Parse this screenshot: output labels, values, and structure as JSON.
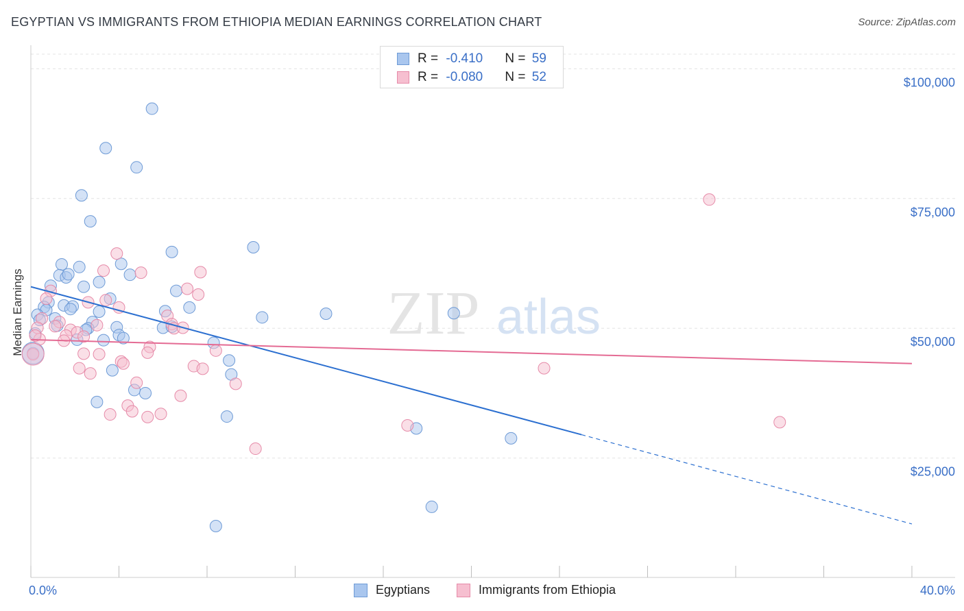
{
  "title": "EGYPTIAN VS IMMIGRANTS FROM ETHIOPIA MEDIAN EARNINGS CORRELATION CHART",
  "source": "Source: ZipAtlas.com",
  "watermark": {
    "zip": "ZIP",
    "atlas": "atlas"
  },
  "legend": {
    "rows": [
      {
        "r_label": "R = ",
        "r_value": "-0.410",
        "n_label": "N = ",
        "n_value": "59",
        "color": "#a9c6ee",
        "border": "#6d9ad6"
      },
      {
        "r_label": "R = ",
        "r_value": "-0.080",
        "n_label": "N = ",
        "n_value": "52",
        "color": "#f6bfd0",
        "border": "#e68aa8"
      }
    ]
  },
  "bottom_legend": [
    {
      "label": "Egyptians",
      "color": "#a9c6ee",
      "border": "#6d9ad6"
    },
    {
      "label": "Immigrants from Ethiopia",
      "color": "#f6bfd0",
      "border": "#e68aa8"
    }
  ],
  "x_axis": {
    "min_label": "0.0%",
    "max_label": "40.0%"
  },
  "chart_data": {
    "type": "scatter",
    "ylabel": "Median Earnings",
    "xlim": [
      0,
      40
    ],
    "ylim": [
      2000,
      104000
    ],
    "y_ticks": [
      {
        "value": 25000,
        "label": "$25,000"
      },
      {
        "value": 50000,
        "label": "$50,000"
      },
      {
        "value": 75000,
        "label": "$75,000"
      },
      {
        "value": 100000,
        "label": "$100,000"
      }
    ],
    "x_tick_values": [
      0,
      4,
      8,
      12,
      16,
      20,
      24,
      28,
      32,
      36,
      40
    ],
    "grid": "horizontal dashed",
    "series": [
      {
        "name": "Egyptians",
        "color": "#6d9ad6",
        "fill": "#a9c6ee",
        "trend": {
          "x0": 0,
          "y0": 58000,
          "x1": 25,
          "y1": 29500,
          "dash_to_x": 40,
          "dash_to_y": 12300,
          "color": "#2b6fd0"
        },
        "points": [
          [
            5.5,
            92300
          ],
          [
            3.4,
            84700
          ],
          [
            4.8,
            81000
          ],
          [
            2.3,
            75600
          ],
          [
            2.7,
            70600
          ],
          [
            6.4,
            64700
          ],
          [
            10.1,
            65600
          ],
          [
            1.4,
            62300
          ],
          [
            2.2,
            61800
          ],
          [
            4.1,
            62400
          ],
          [
            1.3,
            60200
          ],
          [
            1.6,
            59800
          ],
          [
            1.7,
            60400
          ],
          [
            4.5,
            60300
          ],
          [
            3.1,
            58900
          ],
          [
            0.9,
            58200
          ],
          [
            2.4,
            58000
          ],
          [
            6.6,
            57200
          ],
          [
            3.6,
            55700
          ],
          [
            0.8,
            55000
          ],
          [
            1.5,
            54400
          ],
          [
            0.6,
            54100
          ],
          [
            1.9,
            54200
          ],
          [
            7.2,
            54000
          ],
          [
            1.8,
            53700
          ],
          [
            0.7,
            53500
          ],
          [
            3.1,
            53200
          ],
          [
            6.1,
            53300
          ],
          [
            10.5,
            52100
          ],
          [
            13.4,
            52800
          ],
          [
            19.2,
            52900
          ],
          [
            0.3,
            52600
          ],
          [
            1.1,
            51900
          ],
          [
            0.4,
            51600
          ],
          [
            2.8,
            51200
          ],
          [
            1.2,
            50500
          ],
          [
            2.6,
            50000
          ],
          [
            2.5,
            49700
          ],
          [
            3.9,
            50200
          ],
          [
            6.0,
            50100
          ],
          [
            6.4,
            50300
          ],
          [
            0.2,
            49000
          ],
          [
            4.0,
            48700
          ],
          [
            4.2,
            48100
          ],
          [
            3.3,
            47700
          ],
          [
            2.1,
            47800
          ],
          [
            8.3,
            47200
          ],
          [
            9.0,
            43800
          ],
          [
            3.7,
            41900
          ],
          [
            9.1,
            41100
          ],
          [
            4.7,
            38100
          ],
          [
            5.2,
            37500
          ],
          [
            3.0,
            35800
          ],
          [
            8.9,
            33000
          ],
          [
            17.5,
            30700
          ],
          [
            21.8,
            28800
          ],
          [
            18.2,
            15600
          ],
          [
            8.4,
            11900
          ],
          [
            0.1,
            45200
          ]
        ]
      },
      {
        "name": "Immigrants from Ethiopia",
        "color": "#e68aa8",
        "fill": "#f6bfd0",
        "trend": {
          "x0": 0,
          "y0": 47800,
          "x1": 40,
          "y1": 43200,
          "color": "#e46a93"
        },
        "points": [
          [
            30.8,
            74800
          ],
          [
            3.9,
            64400
          ],
          [
            3.3,
            61100
          ],
          [
            5.0,
            60700
          ],
          [
            7.7,
            60800
          ],
          [
            0.9,
            57200
          ],
          [
            7.1,
            57600
          ],
          [
            7.6,
            56500
          ],
          [
            0.7,
            55700
          ],
          [
            3.4,
            55400
          ],
          [
            2.6,
            55000
          ],
          [
            4.0,
            54000
          ],
          [
            6.2,
            52400
          ],
          [
            0.5,
            51900
          ],
          [
            1.3,
            51200
          ],
          [
            1.1,
            50400
          ],
          [
            6.4,
            50800
          ],
          [
            3.0,
            50600
          ],
          [
            6.5,
            50000
          ],
          [
            6.9,
            50100
          ],
          [
            0.3,
            50100
          ],
          [
            1.8,
            49700
          ],
          [
            2.1,
            49200
          ],
          [
            1.6,
            48600
          ],
          [
            2.4,
            48400
          ],
          [
            0.4,
            47900
          ],
          [
            1.5,
            47600
          ],
          [
            5.4,
            46400
          ],
          [
            8.4,
            45700
          ],
          [
            5.3,
            45300
          ],
          [
            2.4,
            45100
          ],
          [
            3.1,
            45000
          ],
          [
            4.1,
            43600
          ],
          [
            4.2,
            43200
          ],
          [
            7.4,
            42700
          ],
          [
            7.8,
            42200
          ],
          [
            2.2,
            42300
          ],
          [
            23.3,
            42300
          ],
          [
            2.7,
            41300
          ],
          [
            9.3,
            39300
          ],
          [
            4.8,
            39500
          ],
          [
            6.8,
            37000
          ],
          [
            4.4,
            35100
          ],
          [
            4.6,
            34000
          ],
          [
            5.9,
            33500
          ],
          [
            3.6,
            33400
          ],
          [
            5.3,
            32900
          ],
          [
            34.0,
            31900
          ],
          [
            17.1,
            31300
          ],
          [
            10.2,
            26800
          ],
          [
            0.1,
            45000
          ],
          [
            0.2,
            48600
          ]
        ]
      }
    ]
  }
}
